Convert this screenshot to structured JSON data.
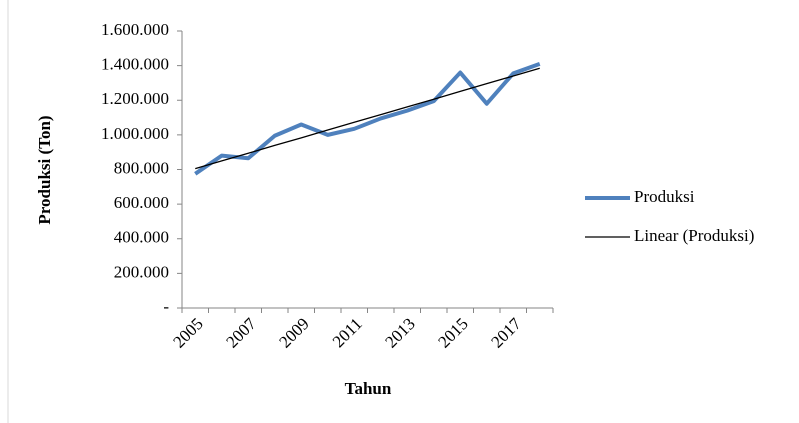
{
  "chart_data": {
    "type": "line",
    "x_label": "Tahun",
    "y_label": "Produksi (Ton)",
    "categories": [
      "2005",
      null,
      "2007",
      null,
      "2009",
      null,
      "2011",
      null,
      "2013",
      null,
      "2015",
      null,
      "2017",
      null
    ],
    "series": [
      {
        "name": "Produksi",
        "color": "#4f81bd",
        "values": [
          775000,
          880000,
          865000,
          995000,
          1060000,
          1000000,
          1035000,
          1095000,
          1140000,
          1195000,
          1360000,
          1180000,
          1355000,
          1410000
        ]
      },
      {
        "name": "Linear (Produksi)",
        "color": "#000000",
        "values": [
          805000,
          850000,
          894000,
          939000,
          983000,
          1028000,
          1073000,
          1117000,
          1162000,
          1206000,
          1251000,
          1296000,
          1340000,
          1385000
        ]
      }
    ],
    "ylim": [
      0,
      1600000
    ],
    "yticks": [
      {
        "value": 0,
        "label": "-"
      },
      {
        "value": 200000,
        "label": "200.000"
      },
      {
        "value": 400000,
        "label": "400.000"
      },
      {
        "value": 600000,
        "label": "600.000"
      },
      {
        "value": 800000,
        "label": "800.000"
      },
      {
        "value": 1000000,
        "label": "1.000.000"
      },
      {
        "value": 1200000,
        "label": "1.200.000"
      },
      {
        "value": 1400000,
        "label": "1.400.000"
      },
      {
        "value": 1600000,
        "label": "1.600.000"
      }
    ],
    "grid": false,
    "legend": "right"
  }
}
